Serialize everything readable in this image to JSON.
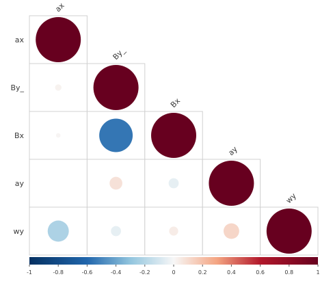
{
  "chart_data": {
    "type": "heatmap",
    "variables": [
      "ax",
      "By_",
      "Bx",
      "ay",
      "wy"
    ],
    "lower_triangle": [
      [
        1.0
      ],
      [
        0.02,
        1.0
      ],
      [
        0.01,
        -0.55,
        1.0
      ],
      [
        0.0,
        0.08,
        -0.05,
        1.0
      ],
      [
        -0.22,
        -0.05,
        0.04,
        0.12,
        1.0
      ]
    ],
    "color_scale": {
      "min": -1,
      "max": 1,
      "ticks": [
        "-1",
        "-0.8",
        "-0.6",
        "-0.4",
        "-0.2",
        "0",
        "0.2",
        "0.4",
        "0.6",
        "0.8",
        "1"
      ],
      "negative_color": "#053061",
      "mid_color": "#f7f7f7",
      "positive_color": "#67001f"
    },
    "legend_position": "bottom",
    "grid": true
  }
}
